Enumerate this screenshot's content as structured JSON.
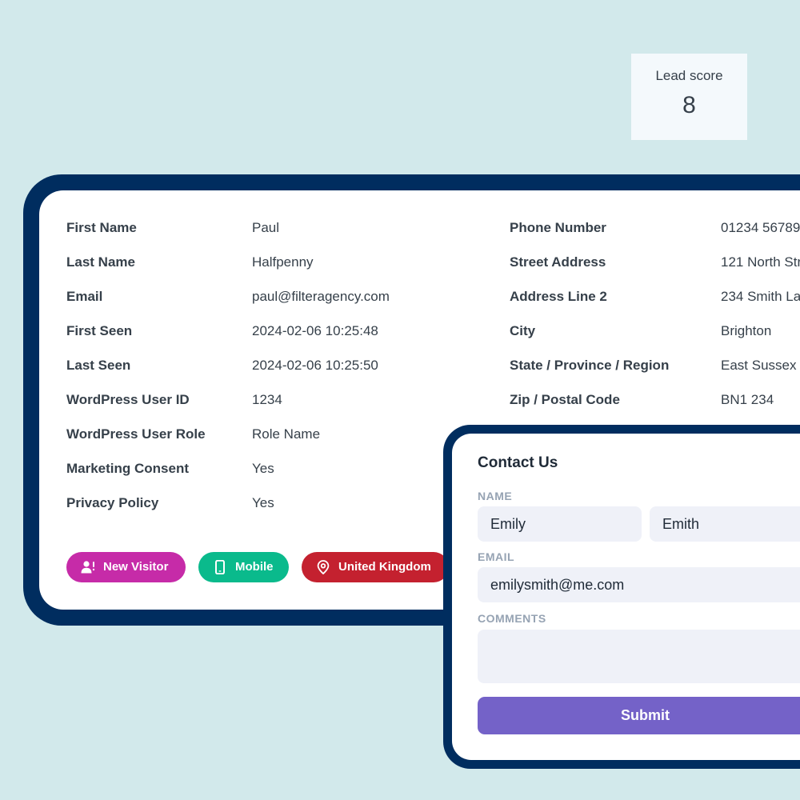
{
  "lead_score": {
    "label": "Lead score",
    "value": "8"
  },
  "visitor": {
    "fields_left": [
      {
        "label": "First Name",
        "value": "Paul"
      },
      {
        "label": "Last Name",
        "value": "Halfpenny"
      },
      {
        "label": "Email",
        "value": "paul@filteragency.com"
      },
      {
        "label": "First Seen",
        "value": "2024-02-06 10:25:48"
      },
      {
        "label": "Last Seen",
        "value": "2024-02-06 10:25:50"
      },
      {
        "label": "WordPress User ID",
        "value": "1234"
      },
      {
        "label": "WordPress User Role",
        "value": "Role Name"
      },
      {
        "label": "Marketing Consent",
        "value": "Yes"
      },
      {
        "label": "Privacy Policy",
        "value": "Yes"
      }
    ],
    "fields_right": [
      {
        "label": "Phone Number",
        "value": "01234 56789"
      },
      {
        "label": "Street Address",
        "value": "121 North Str"
      },
      {
        "label": "Address Line 2",
        "value": "234 Smith La"
      },
      {
        "label": "City",
        "value": "Brighton"
      },
      {
        "label": "State / Province / Region",
        "value": "East Sussex"
      },
      {
        "label": "Zip / Postal Code",
        "value": "BN1 234"
      }
    ],
    "tags": [
      {
        "label": "New Visitor",
        "icon": "new-visitor-icon",
        "color": "#c62ba8"
      },
      {
        "label": "Mobile",
        "icon": "mobile-icon",
        "color": "#0aba8c"
      },
      {
        "label": "United Kingdom",
        "icon": "location-pin-icon",
        "color": "#c4212f"
      }
    ]
  },
  "contact_form": {
    "title": "Contact Us",
    "name_label": "NAME",
    "first_name_value": "Emily",
    "last_name_value": "Emith",
    "email_label": "EMAIL",
    "email_value": "emilysmith@me.com",
    "comments_label": "COMMENTS",
    "comments_value": "",
    "submit_label": "Submit"
  },
  "colors": {
    "background": "#d2e9eb",
    "frame_navy": "#002d5f",
    "submit_purple": "#7462c8"
  }
}
